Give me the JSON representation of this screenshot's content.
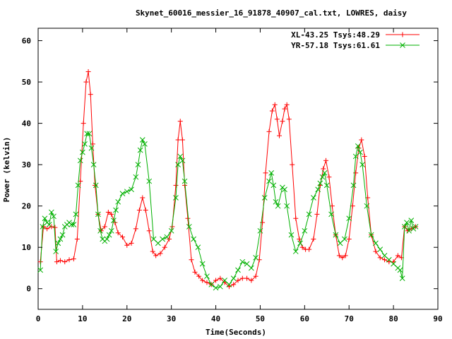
{
  "chart_data": {
    "type": "line",
    "title": "Skynet_60016_messier_16_91878_40907_cal.txt, LOWRES, daisy",
    "xlabel": "Time(Seconds)",
    "ylabel": "Power (kelvin)",
    "xlim": [
      0,
      90
    ],
    "ylim": [
      -5,
      63
    ],
    "xticks": [
      0,
      10,
      20,
      30,
      40,
      50,
      60,
      70,
      80,
      90
    ],
    "yticks": [
      0,
      10,
      20,
      30,
      40,
      50,
      60
    ],
    "legend_position": "top-right",
    "grid": false,
    "series": [
      {
        "name": "XL-43.25 Tsys:48.29",
        "color": "#ff0000",
        "marker": "plus",
        "x": [
          0.5,
          1.2,
          2.0,
          3.0,
          3.8,
          4.2,
          5.0,
          6.0,
          7.0,
          8.0,
          8.8,
          9.5,
          10.2,
          10.8,
          11.3,
          11.8,
          12.3,
          12.8,
          13.5,
          14.2,
          15.0,
          15.8,
          16.5,
          17.3,
          18.0,
          19.0,
          20.0,
          21.0,
          22.0,
          22.8,
          23.5,
          24.2,
          25.0,
          25.8,
          26.5,
          27.5,
          28.5,
          29.5,
          30.2,
          31.0,
          31.5,
          32.0,
          32.5,
          33.0,
          33.7,
          34.5,
          35.3,
          36.2,
          37.0,
          38.0,
          39.0,
          40.0,
          41.0,
          42.0,
          43.0,
          44.0,
          45.0,
          46.0,
          47.0,
          48.0,
          49.0,
          49.8,
          50.5,
          51.2,
          52.0,
          52.7,
          53.3,
          53.8,
          54.3,
          55.0,
          55.5,
          56.0,
          56.5,
          57.2,
          58.0,
          58.8,
          59.5,
          60.2,
          61.0,
          62.0,
          62.8,
          63.5,
          64.2,
          64.8,
          65.5,
          66.2,
          67.0,
          67.8,
          68.5,
          69.2,
          70.0,
          70.8,
          71.5,
          72.2,
          72.8,
          73.5,
          74.2,
          75.0,
          76.0,
          77.0,
          78.0,
          79.0,
          80.0,
          81.0,
          81.8,
          82.5,
          83.2,
          84.0,
          85.0
        ],
        "y": [
          6.5,
          15.0,
          14.5,
          15.0,
          14.8,
          6.5,
          6.8,
          6.5,
          7.0,
          7.2,
          12.0,
          26.0,
          40.0,
          50.0,
          52.5,
          47.0,
          35.0,
          25.0,
          18.0,
          14.0,
          15.0,
          18.5,
          18.0,
          16.0,
          13.5,
          12.5,
          10.5,
          11.0,
          14.5,
          19.0,
          22.0,
          19.0,
          14.0,
          9.0,
          8.0,
          8.5,
          10.0,
          12.0,
          15.0,
          25.0,
          36.0,
          40.5,
          36.0,
          25.0,
          17.0,
          7.0,
          4.0,
          3.0,
          2.0,
          1.5,
          1.0,
          2.0,
          2.5,
          1.5,
          0.5,
          1.0,
          2.0,
          2.5,
          2.5,
          2.0,
          3.0,
          7.0,
          16.0,
          28.0,
          38.0,
          43.0,
          44.5,
          41.0,
          37.0,
          40.5,
          43.5,
          44.5,
          41.0,
          30.0,
          17.0,
          12.0,
          10.0,
          9.5,
          9.5,
          12.0,
          18.0,
          25.0,
          29.0,
          31.0,
          27.0,
          20.0,
          13.0,
          8.0,
          7.5,
          8.0,
          12.0,
          20.0,
          28.0,
          34.0,
          36.0,
          32.0,
          22.0,
          13.0,
          9.0,
          7.5,
          7.0,
          6.5,
          6.5,
          8.0,
          7.5,
          15.0,
          14.0,
          14.5,
          15.0
        ]
      },
      {
        "name": "YR-57.18 Tsys:61.61",
        "color": "#00b000",
        "marker": "cross",
        "x": [
          0.5,
          1.0,
          1.5,
          2.0,
          2.5,
          3.0,
          3.5,
          4.0,
          4.5,
          5.0,
          5.5,
          6.0,
          6.5,
          7.0,
          7.5,
          8.0,
          8.5,
          9.0,
          9.5,
          10.0,
          10.5,
          11.0,
          11.5,
          12.0,
          12.5,
          13.0,
          13.5,
          14.0,
          14.5,
          15.0,
          15.5,
          16.0,
          16.5,
          17.0,
          17.5,
          18.0,
          19.0,
          20.0,
          21.0,
          22.0,
          22.5,
          23.0,
          23.5,
          24.0,
          25.0,
          26.0,
          27.0,
          28.0,
          29.0,
          30.0,
          31.0,
          31.5,
          32.0,
          32.5,
          33.0,
          34.0,
          35.0,
          36.0,
          37.0,
          38.0,
          39.0,
          40.0,
          41.0,
          42.0,
          43.0,
          44.0,
          45.0,
          46.0,
          47.0,
          48.0,
          49.0,
          50.0,
          51.0,
          52.0,
          52.5,
          53.0,
          53.5,
          54.0,
          55.0,
          55.5,
          56.0,
          57.0,
          58.0,
          59.0,
          60.0,
          61.0,
          62.0,
          63.0,
          63.5,
          64.0,
          64.5,
          65.0,
          66.0,
          67.0,
          68.0,
          69.0,
          70.0,
          71.0,
          71.5,
          72.0,
          72.5,
          73.0,
          74.0,
          75.0,
          76.0,
          77.0,
          78.0,
          79.0,
          80.0,
          81.0,
          81.5,
          82.0,
          82.5,
          83.0,
          83.5,
          84.0,
          84.5,
          85.0
        ],
        "y": [
          4.5,
          15.0,
          17.0,
          16.0,
          15.5,
          18.5,
          17.5,
          9.0,
          11.0,
          12.0,
          13.0,
          15.0,
          15.5,
          16.0,
          15.5,
          15.5,
          18.0,
          25.0,
          31.0,
          33.0,
          35.0,
          37.5,
          37.5,
          34.0,
          30.0,
          25.0,
          18.0,
          14.0,
          12.0,
          11.5,
          12.0,
          13.0,
          14.0,
          16.5,
          19.0,
          21.0,
          23.0,
          23.5,
          24.0,
          27.0,
          30.0,
          33.5,
          36.0,
          35.0,
          26.0,
          12.0,
          11.0,
          12.0,
          12.5,
          14.0,
          22.0,
          30.0,
          32.0,
          31.0,
          26.0,
          15.0,
          12.0,
          10.0,
          6.0,
          3.0,
          1.0,
          0.2,
          0.5,
          2.0,
          1.0,
          2.5,
          4.5,
          6.5,
          6.0,
          5.0,
          7.5,
          14.0,
          22.0,
          26.0,
          28.0,
          25.0,
          21.0,
          20.0,
          24.5,
          24.0,
          20.0,
          13.0,
          9.0,
          11.0,
          14.0,
          18.0,
          22.0,
          24.0,
          25.5,
          27.0,
          28.0,
          25.0,
          18.0,
          13.0,
          11.0,
          12.0,
          17.0,
          25.0,
          32.0,
          34.5,
          33.0,
          30.0,
          20.0,
          13.0,
          11.0,
          9.5,
          8.0,
          7.0,
          6.0,
          5.0,
          4.5,
          2.5,
          15.0,
          16.0,
          14.0,
          16.5,
          14.5,
          15.0
        ]
      }
    ]
  }
}
